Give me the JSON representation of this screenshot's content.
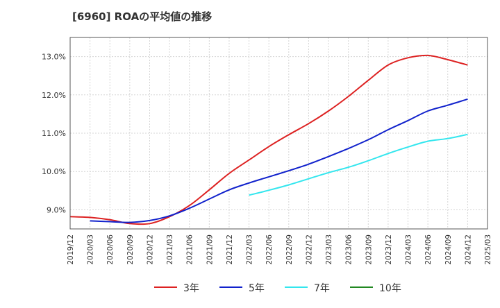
{
  "chart_data": {
    "type": "line",
    "title": "[6960]  ROAの平均値の推移",
    "xlabel": "",
    "ylabel": "",
    "x_ticks": [
      "2019/12",
      "2020/03",
      "2020/06",
      "2020/09",
      "2020/12",
      "2021/03",
      "2021/06",
      "2021/09",
      "2021/12",
      "2022/03",
      "2022/06",
      "2022/09",
      "2022/12",
      "2023/03",
      "2023/06",
      "2023/09",
      "2023/12",
      "2024/03",
      "2024/06",
      "2024/09",
      "2024/12",
      "2025/03"
    ],
    "y_ticks": [
      9.0,
      10.0,
      11.0,
      12.0,
      13.0
    ],
    "y_tick_labels": [
      "9.0%",
      "10.0%",
      "11.0%",
      "12.0%",
      "13.0%"
    ],
    "ylim": [
      8.5,
      13.5
    ],
    "grid": true,
    "legend_position": "bottom",
    "series": [
      {
        "name": "3年",
        "color": "#dd2222",
        "points": [
          [
            "2019/12",
            8.82
          ],
          [
            "2020/03",
            8.8
          ],
          [
            "2020/06",
            8.74
          ],
          [
            "2020/09",
            8.64
          ],
          [
            "2020/12",
            8.64
          ],
          [
            "2021/03",
            8.82
          ],
          [
            "2021/06",
            9.11
          ],
          [
            "2021/09",
            9.52
          ],
          [
            "2021/12",
            9.95
          ],
          [
            "2022/03",
            10.3
          ],
          [
            "2022/06",
            10.65
          ],
          [
            "2022/09",
            10.96
          ],
          [
            "2022/12",
            11.25
          ],
          [
            "2023/03",
            11.58
          ],
          [
            "2023/06",
            11.96
          ],
          [
            "2023/09",
            12.38
          ],
          [
            "2023/12",
            12.78
          ],
          [
            "2024/03",
            12.97
          ],
          [
            "2024/06",
            13.03
          ],
          [
            "2024/09",
            12.92
          ],
          [
            "2024/12",
            12.78
          ]
        ]
      },
      {
        "name": "5年",
        "color": "#1122cc",
        "points": [
          [
            "2020/03",
            8.71
          ],
          [
            "2020/06",
            8.69
          ],
          [
            "2020/09",
            8.67
          ],
          [
            "2020/12",
            8.72
          ],
          [
            "2021/03",
            8.84
          ],
          [
            "2021/06",
            9.04
          ],
          [
            "2021/09",
            9.28
          ],
          [
            "2021/12",
            9.52
          ],
          [
            "2022/03",
            9.7
          ],
          [
            "2022/06",
            9.86
          ],
          [
            "2022/09",
            10.02
          ],
          [
            "2022/12",
            10.19
          ],
          [
            "2023/03",
            10.39
          ],
          [
            "2023/06",
            10.6
          ],
          [
            "2023/09",
            10.83
          ],
          [
            "2023/12",
            11.09
          ],
          [
            "2024/03",
            11.33
          ],
          [
            "2024/06",
            11.58
          ],
          [
            "2024/09",
            11.73
          ],
          [
            "2024/12",
            11.89
          ]
        ]
      },
      {
        "name": "7年",
        "color": "#33e6ee",
        "points": [
          [
            "2022/03",
            9.38
          ],
          [
            "2022/06",
            9.51
          ],
          [
            "2022/09",
            9.65
          ],
          [
            "2022/12",
            9.81
          ],
          [
            "2023/03",
            9.97
          ],
          [
            "2023/06",
            10.11
          ],
          [
            "2023/09",
            10.28
          ],
          [
            "2023/12",
            10.47
          ],
          [
            "2024/03",
            10.64
          ],
          [
            "2024/06",
            10.79
          ],
          [
            "2024/09",
            10.86
          ],
          [
            "2024/12",
            10.97
          ]
        ]
      },
      {
        "name": "10年",
        "color": "#228822",
        "points": []
      }
    ]
  }
}
